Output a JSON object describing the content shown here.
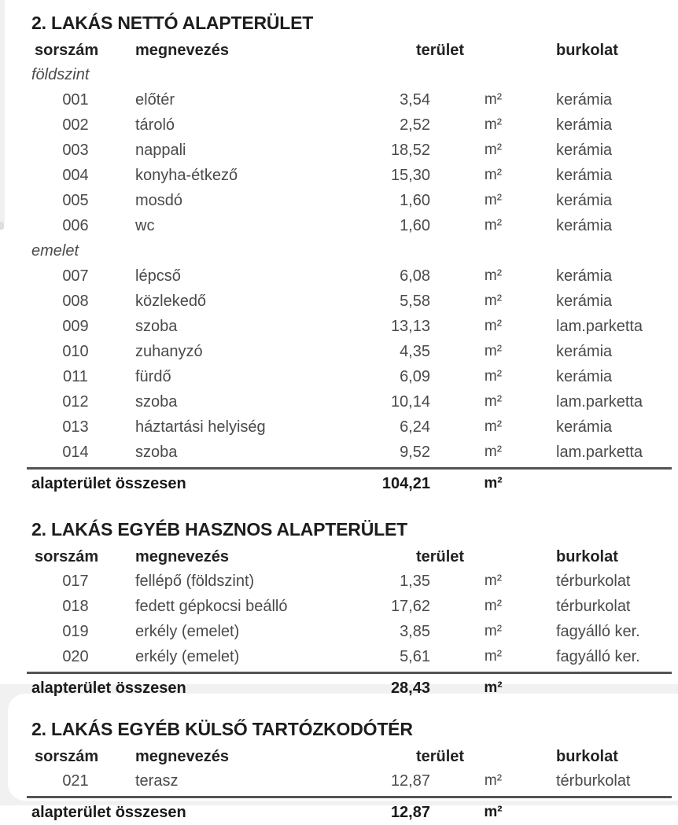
{
  "tables": [
    {
      "title": "2. LAKÁS NETTÓ ALAPTERÜLET",
      "headers": {
        "sorszam": "sorszám",
        "megnevezes": "megnevezés",
        "terulet": "terület",
        "burkolat": "burkolat"
      },
      "groups": [
        {
          "section": "földszint",
          "rows": [
            {
              "num": "001",
              "name": "előtér",
              "value": "3,54",
              "unit": "m²",
              "finish": "kerámia"
            },
            {
              "num": "002",
              "name": "tároló",
              "value": "2,52",
              "unit": "m²",
              "finish": "kerámia"
            },
            {
              "num": "003",
              "name": "nappali",
              "value": "18,52",
              "unit": "m²",
              "finish": "kerámia"
            },
            {
              "num": "004",
              "name": "konyha-étkező",
              "value": "15,30",
              "unit": "m²",
              "finish": "kerámia"
            },
            {
              "num": "005",
              "name": "mosdó",
              "value": "1,60",
              "unit": "m²",
              "finish": "kerámia"
            },
            {
              "num": "006",
              "name": "wc",
              "value": "1,60",
              "unit": "m²",
              "finish": "kerámia"
            }
          ]
        },
        {
          "section": "emelet",
          "rows": [
            {
              "num": "007",
              "name": "lépcső",
              "value": "6,08",
              "unit": "m²",
              "finish": "kerámia"
            },
            {
              "num": "008",
              "name": "közlekedő",
              "value": "5,58",
              "unit": "m²",
              "finish": "kerámia"
            },
            {
              "num": "009",
              "name": "szoba",
              "value": "13,13",
              "unit": "m²",
              "finish": "lam.parketta"
            },
            {
              "num": "010",
              "name": "zuhanyzó",
              "value": "4,35",
              "unit": "m²",
              "finish": "kerámia"
            },
            {
              "num": "011",
              "name": "fürdő",
              "value": "6,09",
              "unit": "m²",
              "finish": "kerámia"
            },
            {
              "num": "012",
              "name": "szoba",
              "value": "10,14",
              "unit": "m²",
              "finish": "lam.parketta"
            },
            {
              "num": "013",
              "name": "háztartási helyiség",
              "value": "6,24",
              "unit": "m²",
              "finish": "kerámia"
            },
            {
              "num": "014",
              "name": "szoba",
              "value": "9,52",
              "unit": "m²",
              "finish": "lam.parketta"
            }
          ]
        }
      ],
      "total": {
        "label": "alapterület összesen",
        "value": "104,21",
        "unit": "m²"
      }
    },
    {
      "title": "2. LAKÁS EGYÉB HASZNOS ALAPTERÜLET",
      "headers": {
        "sorszam": "sorszám",
        "megnevezes": "megnevezés",
        "terulet": "terület",
        "burkolat": "burkolat"
      },
      "groups": [
        {
          "rows": [
            {
              "num": "017",
              "name": "fellépő (földszint)",
              "value": "1,35",
              "unit": "m²",
              "finish": "térburkolat"
            },
            {
              "num": "018",
              "name": "fedett gépkocsi beálló",
              "value": "17,62",
              "unit": "m²",
              "finish": "térburkolat"
            },
            {
              "num": "019",
              "name": "erkély (emelet)",
              "value": "3,85",
              "unit": "m²",
              "finish": "fagyálló ker."
            },
            {
              "num": "020",
              "name": "erkély (emelet)",
              "value": "5,61",
              "unit": "m²",
              "finish": "fagyálló ker."
            }
          ]
        }
      ],
      "total": {
        "label": "alapterület összesen",
        "value": "28,43",
        "unit": "m²"
      }
    },
    {
      "title": "2. LAKÁS EGYÉB KÜLSŐ TARTÓZKODÓTÉR",
      "headers": {
        "sorszam": "sorszám",
        "megnevezes": "megnevezés",
        "terulet": "terület",
        "burkolat": "burkolat"
      },
      "groups": [
        {
          "rows": [
            {
              "num": "021",
              "name": "terasz",
              "value": "12,87",
              "unit": "m²",
              "finish": "térburkolat"
            }
          ]
        }
      ],
      "total": {
        "label": "alapterület összesen",
        "value": "12,87",
        "unit": "m²"
      }
    }
  ]
}
